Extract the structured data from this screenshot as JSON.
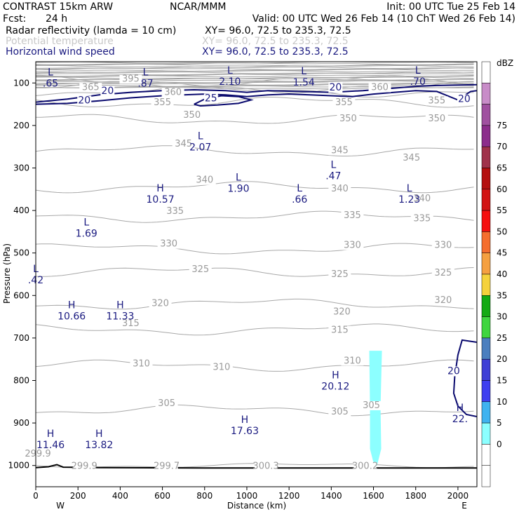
{
  "header": {
    "model": "CONTRAST 15km ARW",
    "center": "NCAR/MMM",
    "init": "Init: 00 UTC Tue 25 Feb 14",
    "fcst_label": "Fcst:",
    "fcst_value": "24 h",
    "valid": "Valid: 00 UTC Wed 26 Feb 14 (10 ChT Wed 26 Feb 14)",
    "fields": [
      {
        "name": "Radar reflectivity (lamda = 10 cm)",
        "xy": "XY=  96.0, 72.5 to 235.3, 72.5",
        "color": "#000000"
      },
      {
        "name": "Potential temperature",
        "xy": "XY=  96.0, 72.5 to 235.3, 72.5",
        "color": "#c8c8c8"
      },
      {
        "name": "Horizontal wind speed",
        "xy": "XY=  96.0, 72.5 to 235.3, 72.5",
        "color": "#1a1a80"
      }
    ]
  },
  "chart_data": {
    "type": "cross-section",
    "xlabel": "Distance (km)",
    "ylabel": "Pressure (hPa)",
    "xlim": [
      0,
      2090
    ],
    "ylim": [
      1050,
      50
    ],
    "y_scale": "linear, pressure decreasing upward",
    "x_ticks": [
      0,
      200,
      400,
      600,
      800,
      1000,
      1200,
      1400,
      1600,
      1800,
      2000
    ],
    "y_ticks": [
      100,
      200,
      300,
      400,
      500,
      600,
      700,
      800,
      900,
      1000
    ],
    "x_end_labels": {
      "left": "W",
      "right": "E"
    },
    "colorbar": {
      "unit": "dBZ",
      "levels": [
        0,
        5,
        10,
        15,
        20,
        25,
        30,
        35,
        40,
        45,
        50,
        55,
        60,
        65,
        70,
        75
      ],
      "colors": [
        "#ffffff",
        "#ffffff",
        "#8cffff",
        "#3fb3f0",
        "#3f3ff0",
        "#3f3fd6",
        "#4b7fbf",
        "#3fd63f",
        "#14aa14",
        "#f5d23c",
        "#f5a040",
        "#f56e2e",
        "#f50f0f",
        "#d21414",
        "#b40f0f",
        "#a0324b",
        "#8c2d8c",
        "#a050a0",
        "#c88cc8",
        "#ffffff"
      ]
    },
    "reflectivity_area": {
      "x_range_km": [
        1580,
        1640
      ],
      "p_range_hPa": [
        1000,
        730
      ],
      "value_dBZ": "5-10",
      "color": "#8cffff"
    },
    "theta_contours": [
      {
        "value": 300,
        "p_hPa": 1000,
        "label": "300.3"
      },
      {
        "value": 305,
        "p_hPa": 870
      },
      {
        "value": 310,
        "p_hPa": 765
      },
      {
        "value": 315,
        "p_hPa": 680
      },
      {
        "value": 320,
        "p_hPa": 620
      },
      {
        "value": 325,
        "p_hPa": 545
      },
      {
        "value": 330,
        "p_hPa": 490
      },
      {
        "value": 335,
        "p_hPa": 415
      },
      {
        "value": 340,
        "p_hPa": 345
      },
      {
        "value": 345,
        "p_hPa": 260
      },
      {
        "value": 350,
        "p_hPa": 185
      },
      {
        "value": 355,
        "p_hPa": 145
      },
      {
        "value": 360,
        "p_hPa": 120
      },
      {
        "value": 365,
        "p_hPa": 110
      },
      {
        "value": 395,
        "p_hPa": 95
      }
    ],
    "theta_labels": [
      {
        "text": "395",
        "x": 450,
        "p": 97
      },
      {
        "text": "365",
        "x": 260,
        "p": 117
      },
      {
        "text": "360",
        "x": 650,
        "p": 128
      },
      {
        "text": "360",
        "x": 1630,
        "p": 117
      },
      {
        "text": "355",
        "x": 600,
        "p": 152
      },
      {
        "text": "355",
        "x": 1460,
        "p": 152
      },
      {
        "text": "355",
        "x": 1900,
        "p": 148
      },
      {
        "text": "350",
        "x": 740,
        "p": 182
      },
      {
        "text": "350",
        "x": 1480,
        "p": 190
      },
      {
        "text": "350",
        "x": 1900,
        "p": 190
      },
      {
        "text": "345",
        "x": 700,
        "p": 250
      },
      {
        "text": "345",
        "x": 1440,
        "p": 265
      },
      {
        "text": "345",
        "x": 1780,
        "p": 283
      },
      {
        "text": "340",
        "x": 800,
        "p": 335
      },
      {
        "text": "340",
        "x": 1440,
        "p": 355
      },
      {
        "text": "340",
        "x": 1830,
        "p": 378
      },
      {
        "text": "335",
        "x": 660,
        "p": 408
      },
      {
        "text": "335",
        "x": 1500,
        "p": 418
      },
      {
        "text": "335",
        "x": 1830,
        "p": 425
      },
      {
        "text": "330",
        "x": 630,
        "p": 485
      },
      {
        "text": "330",
        "x": 1500,
        "p": 488
      },
      {
        "text": "330",
        "x": 1930,
        "p": 488
      },
      {
        "text": "325",
        "x": 780,
        "p": 545
      },
      {
        "text": "325",
        "x": 1440,
        "p": 557
      },
      {
        "text": "325",
        "x": 1930,
        "p": 553
      },
      {
        "text": "320",
        "x": 590,
        "p": 625
      },
      {
        "text": "320",
        "x": 1450,
        "p": 645
      },
      {
        "text": "320",
        "x": 1930,
        "p": 618
      },
      {
        "text": "315",
        "x": 450,
        "p": 672
      },
      {
        "text": "315",
        "x": 1440,
        "p": 688
      },
      {
        "text": "310",
        "x": 500,
        "p": 767
      },
      {
        "text": "310",
        "x": 880,
        "p": 775
      },
      {
        "text": "310",
        "x": 1500,
        "p": 760
      },
      {
        "text": "305",
        "x": 620,
        "p": 860
      },
      {
        "text": "305",
        "x": 1440,
        "p": 880
      },
      {
        "text": "305",
        "x": 1590,
        "p": 865
      },
      {
        "text": "299.9",
        "x": 10,
        "p": 979
      },
      {
        "text": "299.9",
        "x": 230,
        "p": 1008
      },
      {
        "text": "299.7",
        "x": 620,
        "p": 1008
      },
      {
        "text": "300.3",
        "x": 1090,
        "p": 1008
      },
      {
        "text": "300.2",
        "x": 1560,
        "p": 1008
      }
    ],
    "wind_contours": [
      {
        "value": 20,
        "label": "20"
      },
      {
        "value": 25,
        "label": "25"
      }
    ],
    "wind_labels": [
      {
        "text": "20",
        "x": 340,
        "p": 126
      },
      {
        "text": "20",
        "x": 230,
        "p": 148
      },
      {
        "text": "25",
        "x": 830,
        "p": 143
      },
      {
        "text": "20",
        "x": 1420,
        "p": 118
      },
      {
        "text": "20",
        "x": 2030,
        "p": 145
      },
      {
        "text": "20",
        "x": 1980,
        "p": 785
      }
    ],
    "extrema": [
      {
        "type": "L",
        "value": ".65",
        "x": 70,
        "p": 82
      },
      {
        "type": "L",
        "value": ".87",
        "x": 520,
        "p": 82
      },
      {
        "type": "L",
        "value": "2.10",
        "x": 920,
        "p": 78
      },
      {
        "type": "L",
        "value": "1.54",
        "x": 1270,
        "p": 80
      },
      {
        "type": "L",
        "value": ".70",
        "x": 1810,
        "p": 78
      },
      {
        "type": "L",
        "value": "2.07",
        "x": 780,
        "p": 232
      },
      {
        "type": "L",
        "value": "1.90",
        "x": 960,
        "p": 330
      },
      {
        "type": "L",
        "value": ".66",
        "x": 1250,
        "p": 355
      },
      {
        "type": "L",
        "value": ".47",
        "x": 1410,
        "p": 300
      },
      {
        "type": "L",
        "value": "1.23",
        "x": 1770,
        "p": 355
      },
      {
        "type": "H",
        "value": "10.57",
        "x": 590,
        "p": 355
      },
      {
        "type": "L",
        "value": "1.69",
        "x": 240,
        "p": 435
      },
      {
        "type": "L",
        "value": ".42",
        "x": 0,
        "p": 545
      },
      {
        "type": "H",
        "value": "10.66",
        "x": 170,
        "p": 630
      },
      {
        "type": "H",
        "value": "11.33",
        "x": 400,
        "p": 630
      },
      {
        "type": "H",
        "value": "20.12",
        "x": 1420,
        "p": 795
      },
      {
        "type": "H",
        "value": "22.",
        "x": 2010,
        "p": 872
      },
      {
        "type": "H",
        "value": "17.63",
        "x": 990,
        "p": 900
      },
      {
        "type": "H",
        "value": "11.46",
        "x": 70,
        "p": 933
      },
      {
        "type": "H",
        "value": "13.82",
        "x": 300,
        "p": 933
      }
    ]
  }
}
